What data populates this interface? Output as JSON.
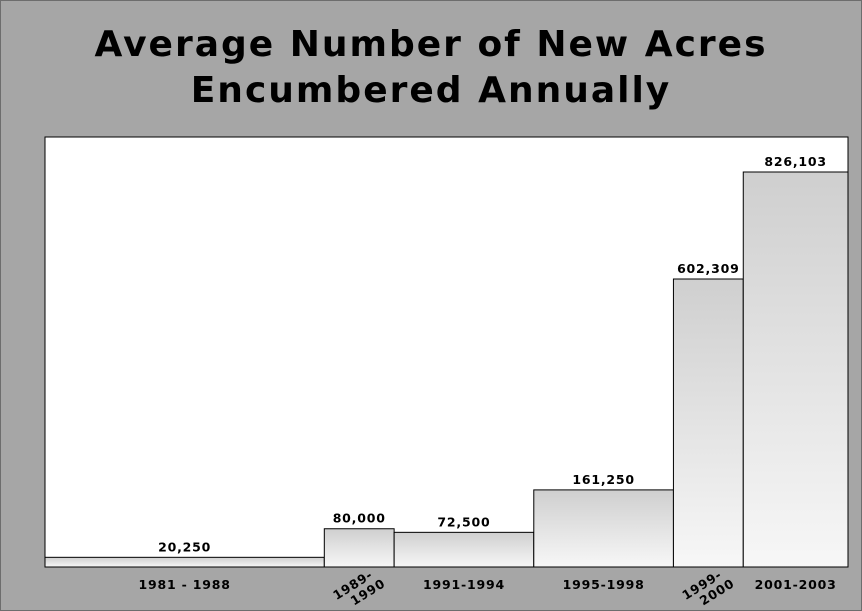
{
  "chart_data": {
    "type": "bar",
    "title_lines": [
      "Average Number of New Acres",
      "Encumbered Annually"
    ],
    "categories": [
      "1981 - 1988",
      "1989-1990",
      "1991-1994",
      "1995-1998",
      "1999-2000",
      "2001-2003"
    ],
    "category_label_lines": [
      [
        "1981 - 1988"
      ],
      [
        "1989-",
        "1990"
      ],
      [
        "1991-1994"
      ],
      [
        "1995-1998"
      ],
      [
        "1999-",
        "2000"
      ],
      [
        "2001-2003"
      ]
    ],
    "bar_widths_years": [
      8,
      2,
      4,
      4,
      2,
      3
    ],
    "values": [
      20250,
      80000,
      72500,
      161250,
      602309,
      826103
    ],
    "value_labels": [
      "20,250",
      "80,000",
      "72,500",
      "161,250",
      "602,309",
      "826,103"
    ],
    "ylim": [
      0,
      826103
    ],
    "grid": false,
    "legend": "none",
    "colors": {
      "background": "#a6a6a6",
      "plot": "#ffffff",
      "bar_top": "#d2d2d2",
      "bar_bottom": "#f6f6f6",
      "outline": "#000000"
    }
  }
}
